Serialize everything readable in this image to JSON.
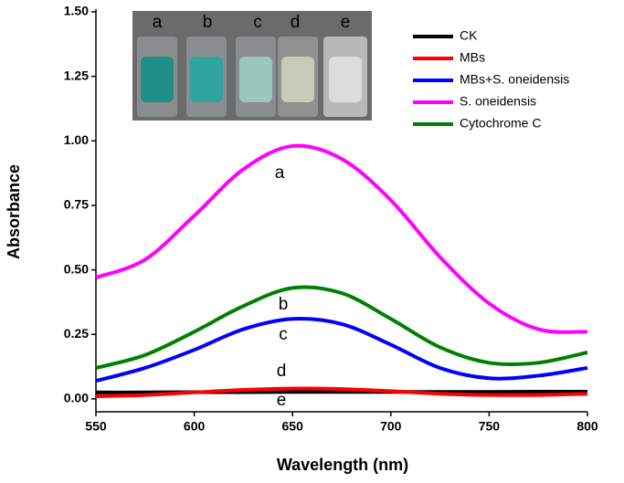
{
  "chart_data": {
    "type": "line",
    "x_label": "Wavelength (nm)",
    "y_label": "Absorbance",
    "x": [
      550,
      575,
      600,
      625,
      650,
      675,
      700,
      725,
      750,
      775,
      800
    ],
    "series": [
      {
        "name": "CK",
        "color": "#000000",
        "values": [
          0.025,
          0.025,
          0.026,
          0.026,
          0.027,
          0.027,
          0.027,
          0.027,
          0.027,
          0.028,
          0.028
        ]
      },
      {
        "name": "MBs",
        "color": "#ff0000",
        "values": [
          0.01,
          0.015,
          0.025,
          0.035,
          0.04,
          0.038,
          0.03,
          0.02,
          0.015,
          0.015,
          0.02
        ]
      },
      {
        "name": "MBs+S. oneidensis",
        "color": "#0000ff",
        "values": [
          0.07,
          0.12,
          0.19,
          0.27,
          0.31,
          0.29,
          0.21,
          0.12,
          0.08,
          0.09,
          0.12
        ]
      },
      {
        "name": "S. oneidensis",
        "color": "#ff00ff",
        "values": [
          0.47,
          0.54,
          0.71,
          0.89,
          0.98,
          0.93,
          0.77,
          0.55,
          0.37,
          0.27,
          0.26
        ]
      },
      {
        "name": "Cytochrome C",
        "color": "#008000",
        "values": [
          0.12,
          0.17,
          0.26,
          0.36,
          0.43,
          0.41,
          0.31,
          0.2,
          0.14,
          0.14,
          0.18
        ]
      }
    ],
    "xlim": [
      550,
      800
    ],
    "ylim": [
      -0.05,
      1.5
    ],
    "xticks": [
      550,
      600,
      650,
      700,
      750,
      800
    ],
    "yticks": [
      {
        "value": 0,
        "label": "0.00"
      },
      {
        "value": 0.25,
        "label": "0.25"
      },
      {
        "value": 0.5,
        "label": "0.50"
      },
      {
        "value": 0.75,
        "label": "0.75"
      },
      {
        "value": 1,
        "label": "1.00"
      },
      {
        "value": 1.25,
        "label": "1.25"
      },
      {
        "value": 1.5,
        "label": "1.50"
      }
    ],
    "annotations": [
      "a",
      "b",
      "c",
      "d",
      "e"
    ],
    "inset_labels": [
      "a",
      "b",
      "c",
      "d",
      "e"
    ],
    "legend": "upper right"
  }
}
